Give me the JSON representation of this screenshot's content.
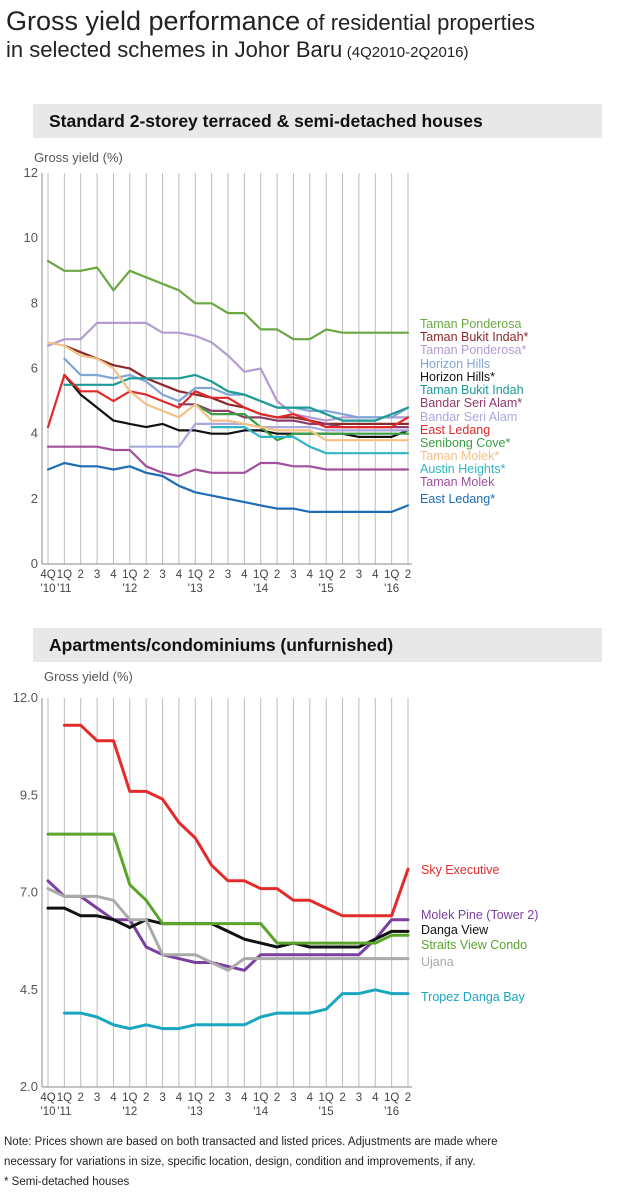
{
  "title": {
    "main": "Gross yield performance",
    "sub": " of residential properties",
    "line2": "in selected schemes in Johor Baru",
    "period": "(4Q2010-2Q2016)"
  },
  "chart_data": [
    {
      "type": "line",
      "title": "Standard 2-storey terraced & semi-detached houses",
      "ylabel": "Gross yield (%)",
      "ylim": [
        0,
        12
      ],
      "yticks": [
        "0",
        "2",
        "4",
        "6",
        "8",
        "10",
        "12"
      ],
      "grid": true,
      "legend": "right, labels at line ends",
      "x": [
        "4Q '10",
        "1Q '11",
        "2",
        "3",
        "4",
        "1Q '12",
        "2",
        "3",
        "4",
        "1Q '13",
        "2",
        "3",
        "4",
        "1Q '14",
        "2",
        "3",
        "4",
        "1Q '15",
        "2",
        "3",
        "4",
        "1Q '16",
        "2"
      ],
      "xtick_top": [
        "4Q",
        "1Q",
        "2",
        "3",
        "4",
        "1Q",
        "2",
        "3",
        "4",
        "1Q",
        "2",
        "3",
        "4",
        "1Q",
        "2",
        "3",
        "4",
        "1Q",
        "2",
        "3",
        "4",
        "1Q",
        "2"
      ],
      "xtick_bottom": [
        "'10",
        "'11",
        "",
        "",
        "",
        "'12",
        "",
        "",
        "",
        "'13",
        "",
        "",
        "",
        "'14",
        "",
        "",
        "",
        "'15",
        "",
        "",
        "",
        "'16",
        ""
      ],
      "series": [
        {
          "name": "Taman Ponderosa",
          "color": "#6aa842",
          "values": [
            9.3,
            9.0,
            9.0,
            9.1,
            8.4,
            9.0,
            8.8,
            8.6,
            8.4,
            8.0,
            8.0,
            7.7,
            7.7,
            7.2,
            7.2,
            6.9,
            6.9,
            7.2,
            7.1,
            7.1,
            7.1,
            7.1,
            7.1
          ]
        },
        {
          "name": "Taman Bukit Indah*",
          "color": "#8b2a2a",
          "values": [
            null,
            6.7,
            6.5,
            6.3,
            6.1,
            6.0,
            5.7,
            5.5,
            5.3,
            5.2,
            5.1,
            4.9,
            4.8,
            4.6,
            4.5,
            4.5,
            4.4,
            4.3,
            4.3,
            4.3,
            4.3,
            4.3,
            4.3
          ]
        },
        {
          "name": "Taman Ponderosa*",
          "color": "#b39cd0",
          "values": [
            6.7,
            6.9,
            6.9,
            7.4,
            7.4,
            7.4,
            7.4,
            7.1,
            7.1,
            7.0,
            6.8,
            6.4,
            5.9,
            6.0,
            5.0,
            4.6,
            4.5,
            4.4,
            4.5,
            4.5,
            4.5,
            4.5,
            4.5
          ]
        },
        {
          "name": "Horizon Hills",
          "color": "#7fa6d4",
          "values": [
            null,
            6.3,
            5.8,
            5.8,
            5.7,
            5.8,
            5.6,
            5.2,
            5.0,
            5.4,
            5.4,
            5.2,
            5.2,
            5.0,
            4.8,
            4.8,
            4.7,
            4.7,
            4.6,
            4.5,
            4.5,
            4.5,
            4.8
          ]
        },
        {
          "name": "Horizon Hills*",
          "color": "#111111",
          "values": [
            null,
            5.8,
            5.2,
            4.8,
            4.4,
            4.3,
            4.2,
            4.3,
            4.1,
            4.1,
            4.0,
            4.0,
            4.1,
            4.1,
            4.0,
            4.0,
            4.0,
            4.0,
            4.0,
            3.9,
            3.9,
            3.9,
            4.1
          ]
        },
        {
          "name": "Taman Bukit Indah",
          "color": "#1b9a96",
          "values": [
            null,
            5.5,
            5.5,
            5.5,
            5.5,
            5.7,
            5.7,
            5.7,
            5.7,
            5.8,
            5.6,
            5.3,
            5.2,
            5.0,
            4.8,
            4.8,
            4.8,
            4.6,
            4.4,
            4.4,
            4.4,
            4.6,
            4.8
          ]
        },
        {
          "name": "Bandar Seri Alam*",
          "color": "#8e3a6b",
          "values": [
            null,
            null,
            null,
            null,
            null,
            null,
            null,
            null,
            4.9,
            4.9,
            4.7,
            4.7,
            4.5,
            4.5,
            4.4,
            4.4,
            4.3,
            4.3,
            4.2,
            4.2,
            4.2,
            4.2,
            4.2
          ]
        },
        {
          "name": "Bandar Seri Alam",
          "color": "#a9a9de",
          "values": [
            null,
            null,
            null,
            null,
            null,
            3.6,
            3.6,
            3.6,
            3.6,
            4.3,
            4.3,
            4.3,
            4.3,
            4.2,
            4.2,
            4.2,
            4.2,
            4.1,
            4.1,
            4.1,
            4.1,
            4.1,
            4.1
          ]
        },
        {
          "name": "East Ledang",
          "color": "#e02a2a",
          "values": [
            4.2,
            5.8,
            5.3,
            5.3,
            5.0,
            5.3,
            5.2,
            5.0,
            4.8,
            5.3,
            5.1,
            5.1,
            4.8,
            4.6,
            4.5,
            4.6,
            4.4,
            4.2,
            4.2,
            4.2,
            4.2,
            4.2,
            4.5
          ]
        },
        {
          "name": "Senibong Cove*",
          "color": "#3aa043",
          "values": [
            null,
            null,
            null,
            null,
            null,
            null,
            null,
            null,
            null,
            4.9,
            4.6,
            4.6,
            4.6,
            4.2,
            3.8,
            4.0,
            4.0,
            4.0,
            4.0,
            4.0,
            4.0,
            4.0,
            4.0
          ]
        },
        {
          "name": "Taman Molek*",
          "color": "#f5c086",
          "values": [
            6.8,
            6.7,
            6.4,
            6.3,
            6.0,
            5.3,
            4.9,
            4.7,
            4.5,
            4.9,
            4.4,
            4.4,
            4.3,
            4.2,
            4.1,
            4.1,
            4.1,
            3.8,
            3.8,
            3.8,
            3.8,
            3.8,
            3.8
          ]
        },
        {
          "name": "Austin Heights*",
          "color": "#2fb5c4",
          "values": [
            null,
            null,
            null,
            null,
            null,
            null,
            null,
            null,
            null,
            null,
            4.2,
            4.2,
            4.2,
            3.9,
            3.9,
            3.9,
            3.6,
            3.4,
            3.4,
            3.4,
            3.4,
            3.4,
            3.4
          ]
        },
        {
          "name": "Taman Molek",
          "color": "#a0509c",
          "values": [
            3.6,
            3.6,
            3.6,
            3.6,
            3.5,
            3.5,
            3.0,
            2.8,
            2.7,
            2.9,
            2.8,
            2.8,
            2.8,
            3.1,
            3.1,
            3.0,
            3.0,
            2.9,
            2.9,
            2.9,
            2.9,
            2.9,
            2.9
          ]
        },
        {
          "name": "East Ledang*",
          "color": "#1c6db5",
          "values": [
            2.9,
            3.1,
            3.0,
            3.0,
            2.9,
            3.0,
            2.8,
            2.7,
            2.4,
            2.2,
            2.1,
            2.0,
            1.9,
            1.8,
            1.7,
            1.7,
            1.6,
            1.6,
            1.6,
            1.6,
            1.6,
            1.6,
            1.8
          ]
        }
      ]
    },
    {
      "type": "line",
      "title": "Apartments/condominiums (unfurnished)",
      "ylabel": "Gross yield (%)",
      "ylim": [
        2.0,
        12.0
      ],
      "yticks": [
        "2.0",
        "4.5",
        "7.0",
        "9.5",
        "12.0"
      ],
      "grid": true,
      "legend": "right, labels at line ends",
      "x": [
        "4Q '10",
        "1Q '11",
        "2",
        "3",
        "4",
        "1Q '12",
        "2",
        "3",
        "4",
        "1Q '13",
        "2",
        "3",
        "4",
        "1Q '14",
        "2",
        "3",
        "4",
        "1Q '15",
        "2",
        "3",
        "4",
        "1Q '16",
        "2"
      ],
      "xtick_top": [
        "4Q",
        "1Q",
        "2",
        "3",
        "4",
        "1Q",
        "2",
        "3",
        "4",
        "1Q",
        "2",
        "3",
        "4",
        "1Q",
        "2",
        "3",
        "4",
        "1Q",
        "2",
        "3",
        "4",
        "1Q",
        "2"
      ],
      "xtick_bottom": [
        "'10",
        "'11",
        "",
        "",
        "",
        "'12",
        "",
        "",
        "",
        "'13",
        "",
        "",
        "",
        "'14",
        "",
        "",
        "",
        "'15",
        "",
        "",
        "",
        "'16",
        ""
      ],
      "series": [
        {
          "name": "Sky Executive",
          "color": "#e32b2b",
          "values": [
            null,
            11.3,
            11.3,
            10.9,
            10.9,
            9.6,
            9.6,
            9.4,
            8.8,
            8.4,
            7.7,
            7.3,
            7.3,
            7.1,
            7.1,
            6.8,
            6.8,
            6.6,
            6.4,
            6.4,
            6.4,
            6.4,
            7.6
          ]
        },
        {
          "name": "Molek Pine (Tower 2)",
          "color": "#7b3fa0",
          "values": [
            7.3,
            6.9,
            6.9,
            6.6,
            6.3,
            6.3,
            5.6,
            5.4,
            5.3,
            5.2,
            5.2,
            5.1,
            5.0,
            5.4,
            5.4,
            5.4,
            5.4,
            5.4,
            5.4,
            5.4,
            5.8,
            6.3,
            6.3
          ]
        },
        {
          "name": "Danga View",
          "color": "#111111",
          "values": [
            6.6,
            6.6,
            6.4,
            6.4,
            6.3,
            6.1,
            6.3,
            6.2,
            6.2,
            6.2,
            6.2,
            6.0,
            5.8,
            5.7,
            5.6,
            5.7,
            5.6,
            5.6,
            5.6,
            5.6,
            5.8,
            6.0,
            6.0
          ]
        },
        {
          "name": "Straits View Condo",
          "color": "#5aa52c",
          "values": [
            8.5,
            8.5,
            8.5,
            8.5,
            8.5,
            7.2,
            6.8,
            6.2,
            6.2,
            6.2,
            6.2,
            6.2,
            6.2,
            6.2,
            5.7,
            5.7,
            5.7,
            5.7,
            5.7,
            5.7,
            5.7,
            5.9,
            5.9
          ]
        },
        {
          "name": "Ujana",
          "color": "#aaaaaa",
          "values": [
            7.1,
            6.9,
            6.9,
            6.9,
            6.8,
            6.3,
            6.3,
            5.4,
            5.4,
            5.4,
            5.2,
            5.0,
            5.3,
            5.3,
            5.3,
            5.3,
            5.3,
            5.3,
            5.3,
            5.3,
            5.3,
            5.3,
            5.3
          ]
        },
        {
          "name": "Tropez Danga Bay",
          "color": "#1aa6c1",
          "values": [
            null,
            3.9,
            3.9,
            3.8,
            3.6,
            3.5,
            3.6,
            3.5,
            3.5,
            3.6,
            3.6,
            3.6,
            3.6,
            3.8,
            3.9,
            3.9,
            3.9,
            4.0,
            4.4,
            4.4,
            4.5,
            4.4,
            4.4
          ]
        }
      ]
    }
  ],
  "note": {
    "line1": "Note: Prices shown are based on both transacted and listed prices. Adjustments are made where",
    "line2": "necessary for variations in size, specific location, design, condition and improvements, if any.",
    "line3": "* Semi-detached houses"
  }
}
